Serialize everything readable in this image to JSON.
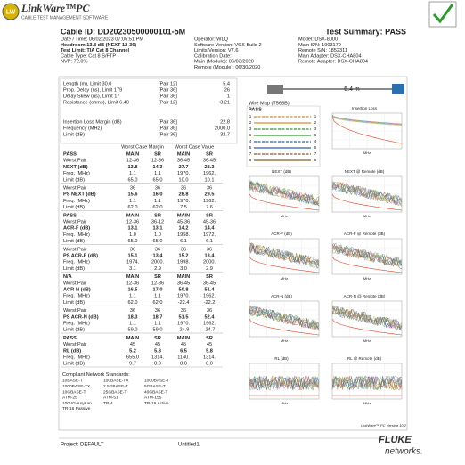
{
  "header": {
    "logo_badge": "LW",
    "product": "LinkWare™PC",
    "tagline": "CABLE TEST MANAGEMENT SOFTWARE"
  },
  "report": {
    "cable_id": "Cable ID: DD20230500000101-5M",
    "summary": "Test Summary: PASS",
    "info_left": [
      "Date / Time: 06/02/2023  07:05:51 PM",
      "Headroom 13.8 dB (NEXT 12-36)",
      "Test Limit: TIA Cat 8 Channel",
      "Cable Type: Cat 8 S/FTP",
      "NVP: 72.0%"
    ],
    "info_mid": [
      "Operator: WLQ",
      "Software Version: V6.6 Build 2",
      "Limits Version: V7.6",
      "Calibration Date:",
      "   Main (Module): 06/03/2020",
      "   Remote (Module): 06/30/2020"
    ],
    "info_right": [
      "Model: DSX-8000",
      "Main S/N: 1903179",
      "Remote S/N: 1852311",
      "Main Adapter: DSX-CHA804",
      "Remote Adapter: DSX-CHA804"
    ]
  },
  "length_table": {
    "rows": [
      [
        "Length (m), Limit 30.0",
        "[Pair 12]",
        "5.4"
      ],
      [
        "Prop. Delay (ns), Limit 179",
        "[Pair 36]",
        "26"
      ],
      [
        "Delay Skew (ns), Limit 17",
        "[Pair 36]",
        "1"
      ],
      [
        "Resistance (ohms), Limit 6.40",
        "[Pair 12]",
        "3.21"
      ]
    ]
  },
  "loss_table": {
    "rows": [
      [
        "Insertion Loss Margin (dB)",
        "[Pair 36]",
        "22.8"
      ],
      [
        "Frequency (MHz)",
        "[Pair 36]",
        "2000.0"
      ],
      [
        "Limit (dB)",
        "[Pair 36]",
        "32.7"
      ]
    ]
  },
  "cable_length": "5.4 m",
  "wire_map": {
    "title": "Wire Map (T568B)",
    "result": "PASS",
    "pins": [
      "1",
      "2",
      "3",
      "6",
      "4",
      "5",
      "7",
      "8"
    ]
  },
  "results": {
    "headers": [
      "Worst Case Margin",
      "Worst Case Value"
    ],
    "groups": [
      {
        "rows": [
          [
            "PASS",
            "MAIN",
            "SR",
            "MAIN",
            "SR"
          ],
          [
            "Worst Pair",
            "12-36",
            "12-36",
            "36-45",
            "36-45"
          ],
          [
            "NEXT (dB)",
            "13.8",
            "14.3",
            "27.7",
            "28.3"
          ],
          [
            "Freq. (MHz)",
            "1.1",
            "1.1",
            "1970.",
            "1962."
          ],
          [
            "Limit (dB)",
            "65.0",
            "65.0",
            "10.0",
            "10.1"
          ]
        ]
      },
      {
        "rows": [
          [
            "Worst Pair",
            "36",
            "36",
            "36",
            "36"
          ],
          [
            "PS NEXT (dB)",
            "15.6",
            "16.0",
            "28.8",
            "29.5"
          ],
          [
            "Freq. (MHz)",
            "1.1",
            "1.1",
            "1970.",
            "1962."
          ],
          [
            "Limit (dB)",
            "62.0",
            "62.0",
            "7.5",
            "7.6"
          ]
        ]
      },
      {
        "rows": [
          [
            "PASS",
            "MAIN",
            "SR",
            "MAIN",
            "SR"
          ],
          [
            "Worst Pair",
            "12-36",
            "36-12",
            "45-36",
            "45-36"
          ],
          [
            "ACR-F (dB)",
            "13.1",
            "13.1",
            "14.2",
            "14.4"
          ],
          [
            "Freq. (MHz)",
            "1.0",
            "1.0",
            "1958.",
            "1972."
          ],
          [
            "Limit (dB)",
            "65.0",
            "65.0",
            "6.1",
            "6.1"
          ]
        ]
      },
      {
        "rows": [
          [
            "Worst Pair",
            "36",
            "36",
            "36",
            "36"
          ],
          [
            "PS ACR-F (dB)",
            "15.1",
            "13.4",
            "15.2",
            "13.4"
          ],
          [
            "Freq. (MHz)",
            "1974.",
            "2000.",
            "1998.",
            "2000."
          ],
          [
            "Limit (dB)",
            "3.1",
            "2.9",
            "3.0",
            "2.9"
          ]
        ]
      },
      {
        "rows": [
          [
            "N/A",
            "MAIN",
            "SR",
            "MAIN",
            "SR"
          ],
          [
            "Worst Pair",
            "12-36",
            "12-36",
            "36-45",
            "36-45"
          ],
          [
            "ACR-N (dB)",
            "16.5",
            "17.0",
            "50.8",
            "51.4"
          ],
          [
            "Freq. (MHz)",
            "1.1",
            "1.1",
            "1970.",
            "1962."
          ],
          [
            "Limit (dB)",
            "62.0",
            "62.0",
            "-22.4",
            "-22.2"
          ]
        ]
      },
      {
        "rows": [
          [
            "Worst Pair",
            "36",
            "36",
            "36",
            "36"
          ],
          [
            "PS ACR-N (dB)",
            "18.3",
            "18.7",
            "51.5",
            "52.4"
          ],
          [
            "Freq. (MHz)",
            "1.1",
            "1.1",
            "1970.",
            "1962."
          ],
          [
            "Limit (dB)",
            "59.0",
            "59.0",
            "-24.9",
            "-24.7"
          ]
        ]
      },
      {
        "rows": [
          [
            "PASS",
            "MAIN",
            "SR",
            "MAIN",
            "SR"
          ],
          [
            "Worst Pair",
            "45",
            "45",
            "45",
            "45"
          ],
          [
            "RL (dB)",
            "5.2",
            "5.8",
            "6.5",
            "5.8"
          ],
          [
            "Freq. (MHz)",
            "655.0",
            "1314.",
            "1140.",
            "1314."
          ],
          [
            "Limit (dB)",
            "9.7",
            "8.0",
            "8.0",
            "8.0"
          ]
        ]
      }
    ]
  },
  "standards": {
    "title": "Compliant Network Standards:",
    "items": [
      "10BASE-T",
      "100BASE-TX",
      "1000BASE-T",
      "1000BASE-TX",
      "2.5GBASE-T",
      "5GBASE-T",
      "10GBASE-T",
      "25GBASE-T",
      "40GBASE-T",
      "ATM-25",
      "ATM-51",
      "ATM-155",
      "100VG-AnyLan",
      "TR-4",
      "TR-16 Active",
      "TR-16 Passive"
    ]
  },
  "graphs": [
    {
      "title": "Insertion Loss",
      "x_label": "MHz"
    },
    {
      "title": "NEXT (dB)",
      "x_label": "MHz"
    },
    {
      "title": "NEXT @ Remote (dB)",
      "x_label": "MHz"
    },
    {
      "title": "ACR-F (dB)",
      "x_label": "MHz"
    },
    {
      "title": "ACR-F @ Remote (dB)",
      "x_label": "MHz"
    },
    {
      "title": "ACR-N (dB)",
      "x_label": "MHz"
    },
    {
      "title": "ACR-N @ Remote (dB)",
      "x_label": "MHz"
    },
    {
      "title": "RL (dB)",
      "x_label": "MHz"
    },
    {
      "title": "RL @ Remote (dB)",
      "x_label": "MHz"
    }
  ],
  "footer": {
    "version": "LinkWare™ PC Version 10.2",
    "project": "Project: DEFAULT",
    "file": "Untitled1",
    "brand": "FLUKE",
    "brand_sub": "networks."
  }
}
